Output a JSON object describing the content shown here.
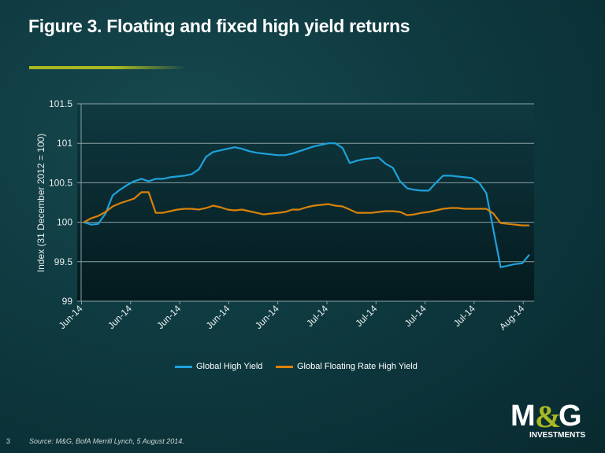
{
  "title": "Figure 3. Floating and fixed high yield returns",
  "page_number": "3",
  "source": "Source: M&G, BofA Merrill Lynch, 5 August 2014.",
  "logo": {
    "text": "M&G",
    "subtext": "INVESTMENTS"
  },
  "colors": {
    "accent": "#a8b820",
    "series_blue": "#1ea2dc",
    "series_orange": "#d9820a"
  },
  "chart_data": {
    "type": "line",
    "title": "",
    "xlabel": "",
    "ylabel": "Index (31 December 2012 = 100)",
    "ylim": [
      99,
      101.5
    ],
    "yticks": [
      "101.5",
      "101",
      "100.5",
      "100",
      "99.5",
      "99"
    ],
    "xtick_labels": [
      "Jun-14",
      "Jun-14",
      "Jun-14",
      "Jun-14",
      "Jun-14",
      "Jul-14",
      "Jul-14",
      "Jul-14",
      "Jul-14",
      "Aug-14"
    ],
    "grid": "horizontal",
    "legend": "bottom",
    "series": [
      {
        "name": "Global High Yield",
        "color": "#1ea2dc",
        "values": [
          100.0,
          99.97,
          99.98,
          100.11,
          100.34,
          100.41,
          100.47,
          100.52,
          100.55,
          100.52,
          100.55,
          100.55,
          100.57,
          100.58,
          100.59,
          100.61,
          100.67,
          100.83,
          100.89,
          100.91,
          100.93,
          100.95,
          100.93,
          100.9,
          100.88,
          100.87,
          100.86,
          100.85,
          100.85,
          100.87,
          100.9,
          100.93,
          100.96,
          100.98,
          101.0,
          101.0,
          100.94,
          100.75,
          100.78,
          100.8,
          100.81,
          100.82,
          100.74,
          100.69,
          100.52,
          100.43,
          100.41,
          100.4,
          100.4,
          100.5,
          100.59,
          100.59,
          100.58,
          100.57,
          100.56,
          100.5,
          100.37,
          99.9,
          99.43,
          99.45,
          99.47,
          99.48,
          99.59
        ]
      },
      {
        "name": "Global Floating Rate High Yield",
        "color": "#d9820a",
        "values": [
          100.0,
          100.05,
          100.08,
          100.13,
          100.2,
          100.24,
          100.27,
          100.3,
          100.38,
          100.38,
          100.12,
          100.12,
          100.14,
          100.16,
          100.17,
          100.17,
          100.16,
          100.18,
          100.21,
          100.19,
          100.16,
          100.15,
          100.16,
          100.14,
          100.12,
          100.1,
          100.11,
          100.12,
          100.13,
          100.16,
          100.16,
          100.19,
          100.21,
          100.22,
          100.23,
          100.21,
          100.2,
          100.16,
          100.12,
          100.12,
          100.12,
          100.13,
          100.14,
          100.14,
          100.13,
          100.09,
          100.1,
          100.12,
          100.13,
          100.15,
          100.17,
          100.18,
          100.18,
          100.17,
          100.17,
          100.17,
          100.17,
          100.11,
          99.99,
          99.98,
          99.97,
          99.96,
          99.96
        ]
      }
    ]
  }
}
